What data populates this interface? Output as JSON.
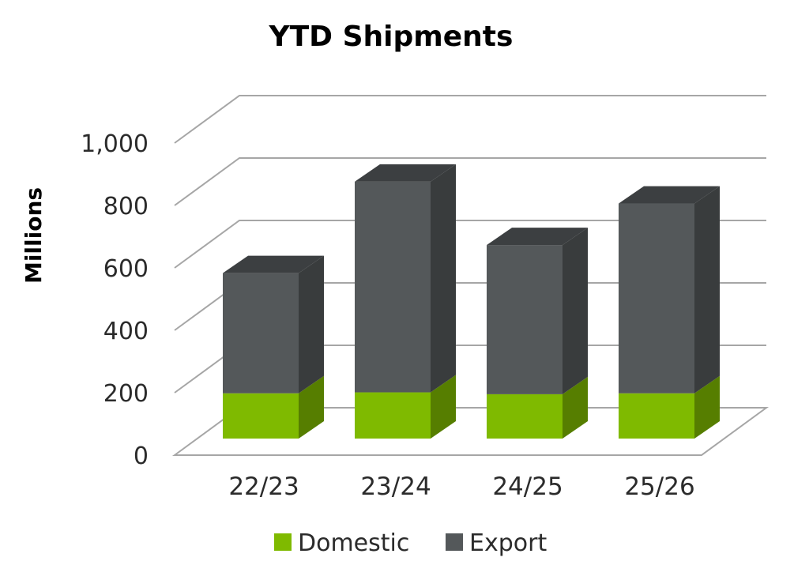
{
  "chart_data": {
    "type": "bar",
    "subtype": "stacked-3d",
    "title": "YTD Shipments",
    "xlabel": "",
    "ylabel": "Millions",
    "categories": [
      "22/23",
      "23/24",
      "24/25",
      "25/26"
    ],
    "series": [
      {
        "name": "Domestic",
        "values": [
          145,
          148,
          142,
          145
        ],
        "color": "#7fba00"
      },
      {
        "name": "Export",
        "values": [
          385,
          675,
          478,
          608
        ],
        "color": "#54585a"
      }
    ],
    "ylim": [
      0,
      1000
    ],
    "yticks": [
      "0",
      "200",
      "400",
      "600",
      "800",
      "1,000"
    ],
    "grid": true,
    "legend": "bottom"
  }
}
